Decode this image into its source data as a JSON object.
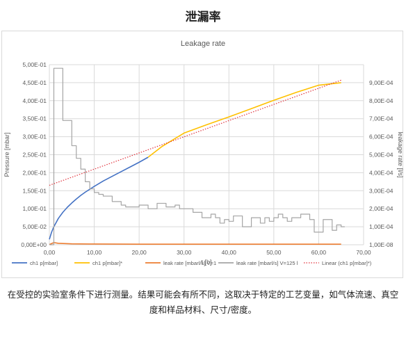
{
  "page_title": "泄漏率",
  "caption_line1": "在受控的实验室条件下进行测量。结果可能会有所不同，这取决于特定的工艺变量，如气体流速、真空",
  "caption_line2": "度和样品材料、尺寸/密度。",
  "chart_data": {
    "type": "line",
    "title": "Leakage rate",
    "xlabel": "t [h]",
    "ylabel": "Pressure [mbar]",
    "y2label": "leakage rate [l/s]",
    "xlim": [
      0,
      70
    ],
    "ylim": [
      0,
      0.5
    ],
    "y2lim": [
      1e-08,
      0.001
    ],
    "x_ticks": [
      "0,00",
      "10,00",
      "20,00",
      "30,00",
      "40,00",
      "50,00",
      "60,00",
      "70,00"
    ],
    "y_ticks": [
      "0,00E+00",
      "5,00E-02",
      "1,00E-01",
      "1,50E-01",
      "2,00E-01",
      "2,50E-01",
      "3,00E-01",
      "3,50E-01",
      "4,00E-01",
      "4,50E-01",
      "5,00E-01"
    ],
    "y2_ticks": [
      "1,00E-08",
      "1,00E-04",
      "2,00E-04",
      "3,00E-04",
      "4,00E-04",
      "5,00E-04",
      "6,00E-04",
      "7,00E-04",
      "8,00E-04",
      "9,00E-04"
    ],
    "grid": true,
    "legend_position": "bottom",
    "colors": {
      "ch1": "#4472c4",
      "ch1_star": "#ffc000",
      "leak1": "#ed7d31",
      "leak125": "#a5a5a5",
      "linear": "#e0303a"
    },
    "series": [
      {
        "name": "ch1 p[mbar]",
        "axis": "left",
        "style": "solid",
        "color": "#4472c4",
        "x": [
          0,
          0.5,
          1,
          2,
          3,
          4,
          5,
          6,
          7,
          8,
          10,
          12,
          14,
          16,
          18,
          20,
          22
        ],
        "y": [
          0.015,
          0.035,
          0.05,
          0.073,
          0.09,
          0.104,
          0.116,
          0.127,
          0.137,
          0.146,
          0.162,
          0.177,
          0.19,
          0.203,
          0.216,
          0.229,
          0.243
        ]
      },
      {
        "name": "ch1 p[mbar]*",
        "axis": "left",
        "style": "solid",
        "color": "#ffc000",
        "x": [
          22,
          25,
          30,
          35,
          40,
          45,
          50,
          55,
          60,
          65
        ],
        "y": [
          0.243,
          0.272,
          0.31,
          0.333,
          0.355,
          0.378,
          0.401,
          0.423,
          0.443,
          0.45
        ]
      },
      {
        "name": "leak rate [mbarl/s] V=1",
        "axis": "right",
        "style": "solid",
        "color": "#ed7d31",
        "x": [
          0,
          1,
          2,
          5,
          10,
          20,
          30,
          40,
          50,
          60,
          65
        ],
        "y": [
          1e-06,
          1.2e-05,
          8e-06,
          5e-06,
          4e-06,
          3e-06,
          3e-06,
          3e-06,
          3e-06,
          3e-06,
          3e-06
        ]
      },
      {
        "name": "leak rate [mbarl/s] V=125 l",
        "axis": "right",
        "style": "step",
        "color": "#a5a5a5",
        "x": [
          0,
          1,
          2,
          3,
          4,
          5,
          6,
          7,
          8,
          9,
          10,
          11,
          12,
          13,
          14,
          15,
          16,
          17,
          18,
          19,
          20,
          21,
          22,
          23,
          24,
          25,
          26,
          27,
          28,
          29,
          30,
          31,
          32,
          33,
          34,
          35,
          36,
          37,
          38,
          39,
          40,
          41,
          42,
          43,
          44,
          45,
          46,
          47,
          48,
          49,
          50,
          51,
          52,
          53,
          54,
          55,
          56,
          57,
          58,
          59,
          60,
          61,
          62,
          63,
          64,
          65
        ],
        "y": [
          1e-07,
          0.00098,
          0.00098,
          0.00069,
          0.00069,
          0.00055,
          0.00048,
          0.00042,
          0.00035,
          0.00031,
          0.00029,
          0.00028,
          0.00027,
          0.00027,
          0.00024,
          0.00024,
          0.00022,
          0.00021,
          0.00021,
          0.00021,
          0.00022,
          0.00022,
          0.0002,
          0.0002,
          0.00023,
          0.00023,
          0.00021,
          0.00021,
          0.00022,
          0.0002,
          0.0002,
          0.0002,
          0.00018,
          0.00018,
          0.00015,
          0.00015,
          0.00017,
          0.00015,
          0.00012,
          0.00014,
          0.00013,
          0.00016,
          0.00016,
          0.0001,
          0.0001,
          0.00015,
          0.00015,
          0.00012,
          0.00015,
          0.00013,
          0.00015,
          0.00017,
          0.00015,
          0.00013,
          0.00015,
          0.00015,
          0.00017,
          0.00017,
          0.00014,
          7e-05,
          7e-05,
          0.00014,
          0.00014,
          8e-05,
          0.00011,
          0.0001
        ]
      },
      {
        "name": "Linear (ch1 p[mbar]*)",
        "axis": "left",
        "style": "dotted",
        "color": "#e0303a",
        "x": [
          0,
          65
        ],
        "y": [
          0.165,
          0.457
        ]
      }
    ]
  }
}
